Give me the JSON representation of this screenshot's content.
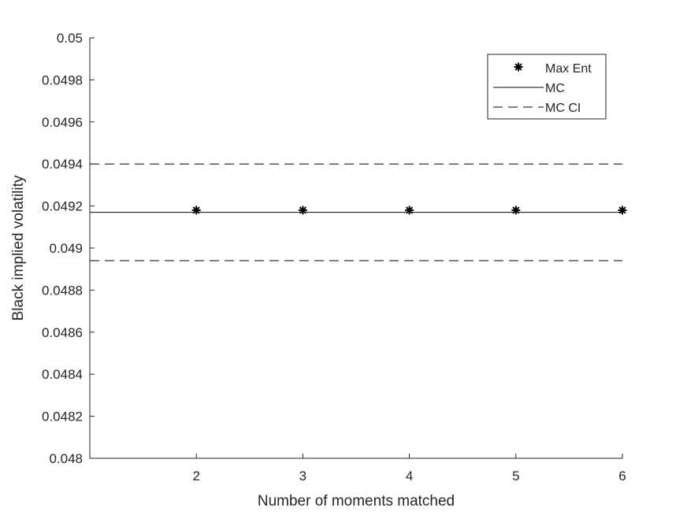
{
  "chart_data": {
    "type": "line",
    "title": "",
    "xlabel": "Number of moments matched",
    "ylabel": "Black implied volatility",
    "xlim": [
      1,
      6
    ],
    "ylim": [
      0.048,
      0.05
    ],
    "x_ticks": [
      2,
      3,
      4,
      5,
      6
    ],
    "x_tick_labels": [
      "2",
      "3",
      "4",
      "5",
      "6"
    ],
    "y_ticks": [
      0.048,
      0.0482,
      0.0484,
      0.0486,
      0.0488,
      0.049,
      0.0492,
      0.0494,
      0.0496,
      0.0498,
      0.05
    ],
    "y_tick_labels": [
      "0.048",
      "0.0482",
      "0.0484",
      "0.0486",
      "0.0488",
      "0.049",
      "0.0492",
      "0.0494",
      "0.0496",
      "0.0498",
      "0.05"
    ],
    "grid": false,
    "legend_position": "top-right",
    "series": [
      {
        "name": "Max Ent",
        "style": "markers",
        "marker": "asterisk",
        "color": "#000000",
        "x": [
          2,
          3,
          4,
          5,
          6
        ],
        "y": [
          0.04918,
          0.04918,
          0.04918,
          0.04918,
          0.04918
        ]
      },
      {
        "name": "MC",
        "style": "solid-line",
        "color": "#000000",
        "x": [
          1,
          6
        ],
        "y": [
          0.04917,
          0.04917
        ]
      },
      {
        "name": "MC CI",
        "style": "dashed-line",
        "color": "#000000",
        "x": [
          1,
          6
        ],
        "y": [
          0.0494,
          0.0494
        ]
      },
      {
        "name": "MC CI",
        "style": "dashed-line",
        "color": "#000000",
        "x": [
          1,
          6
        ],
        "y": [
          0.04894,
          0.04894
        ]
      }
    ],
    "legend": [
      "Max Ent",
      "MC",
      "MC CI"
    ]
  }
}
